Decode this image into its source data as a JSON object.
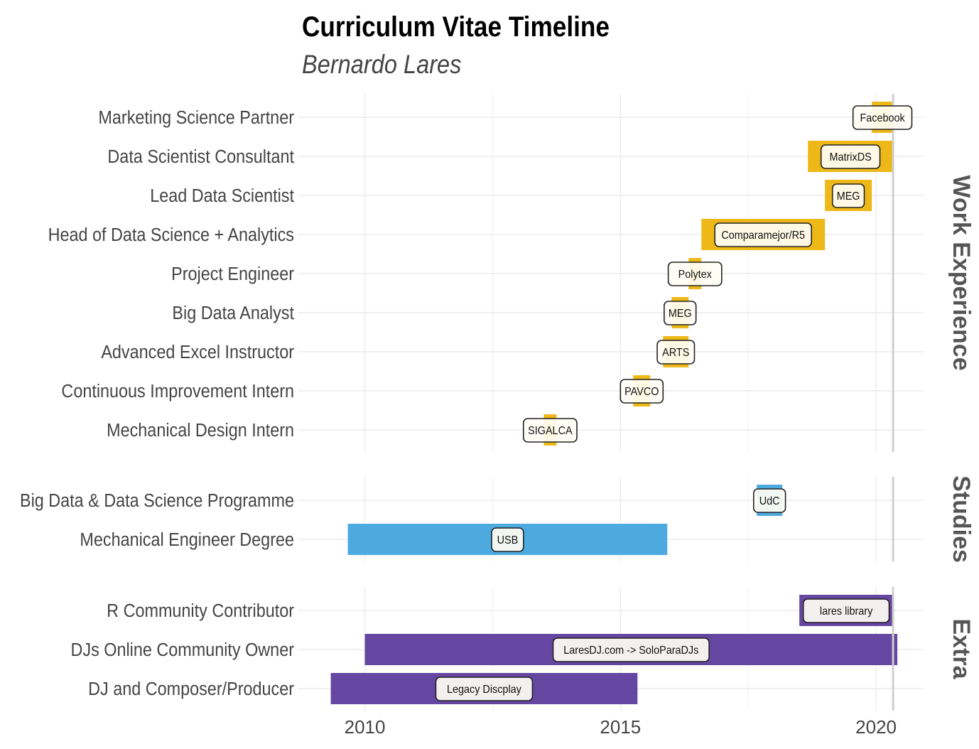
{
  "chart_data": {
    "type": "timeline",
    "title": "Curriculum Vitae Timeline",
    "subtitle": "Bernardo Lares",
    "xlim": [
      2008.7,
      2020.93
    ],
    "x_ticks": [
      "2010",
      "2015",
      "2020"
    ],
    "today": "2020-05",
    "grid": true,
    "panels": [
      {
        "name": "Work Experience",
        "color": "#EDB818",
        "rows": [
          {
            "role": "Marketing Science Partner",
            "org": "Facebook",
            "start": "2019-12",
            "end": "2020-05"
          },
          {
            "role": "Data Scientist Consultant",
            "org": "MatrixDS",
            "start": "2018-09",
            "end": "2020-05"
          },
          {
            "role": "Lead Data Scientist",
            "org": "MEG",
            "start": "2019-01",
            "end": "2019-12"
          },
          {
            "role": "Head of Data Science + Analytics",
            "org": "Comparamejor/R5",
            "start": "2016-08",
            "end": "2019-01"
          },
          {
            "role": "Project Engineer",
            "org": "Polytex",
            "start": "2016-05",
            "end": "2016-08"
          },
          {
            "role": "Big Data Analyst",
            "org": "MEG",
            "start": "2016-01",
            "end": "2016-05"
          },
          {
            "role": "Advanced Excel Instructor",
            "org": "ARTS",
            "start": "2015-11",
            "end": "2016-05"
          },
          {
            "role": "Continuous Improvement Intern",
            "org": "PAVCO",
            "start": "2015-04",
            "end": "2015-08"
          },
          {
            "role": "Mechanical Design Intern",
            "org": "SIGALCA",
            "start": "2013-07",
            "end": "2013-10"
          }
        ]
      },
      {
        "name": "Studies",
        "color": "#4DAADF",
        "rows": [
          {
            "role": "Big Data & Data Science Programme",
            "org": "UdC",
            "start": "2017-09",
            "end": "2018-03"
          },
          {
            "role": "Mechanical Engineer Degree",
            "org": "USB",
            "start": "2009-09",
            "end": "2015-12"
          }
        ]
      },
      {
        "name": "Extra",
        "color": "#6546A0",
        "rows": [
          {
            "role": "R Community Contributor",
            "org": "lares library",
            "start": "2018-07",
            "end": "2020-05"
          },
          {
            "role": "DJs Online Community Owner",
            "org": "LaresDJ.com -> SoloParaDJs",
            "start": "2010-01",
            "end": "2020-06"
          },
          {
            "role": "DJ and Composer/Producer",
            "org": "Legacy Discplay",
            "start": "2009-05",
            "end": "2015-05"
          }
        ]
      }
    ]
  }
}
